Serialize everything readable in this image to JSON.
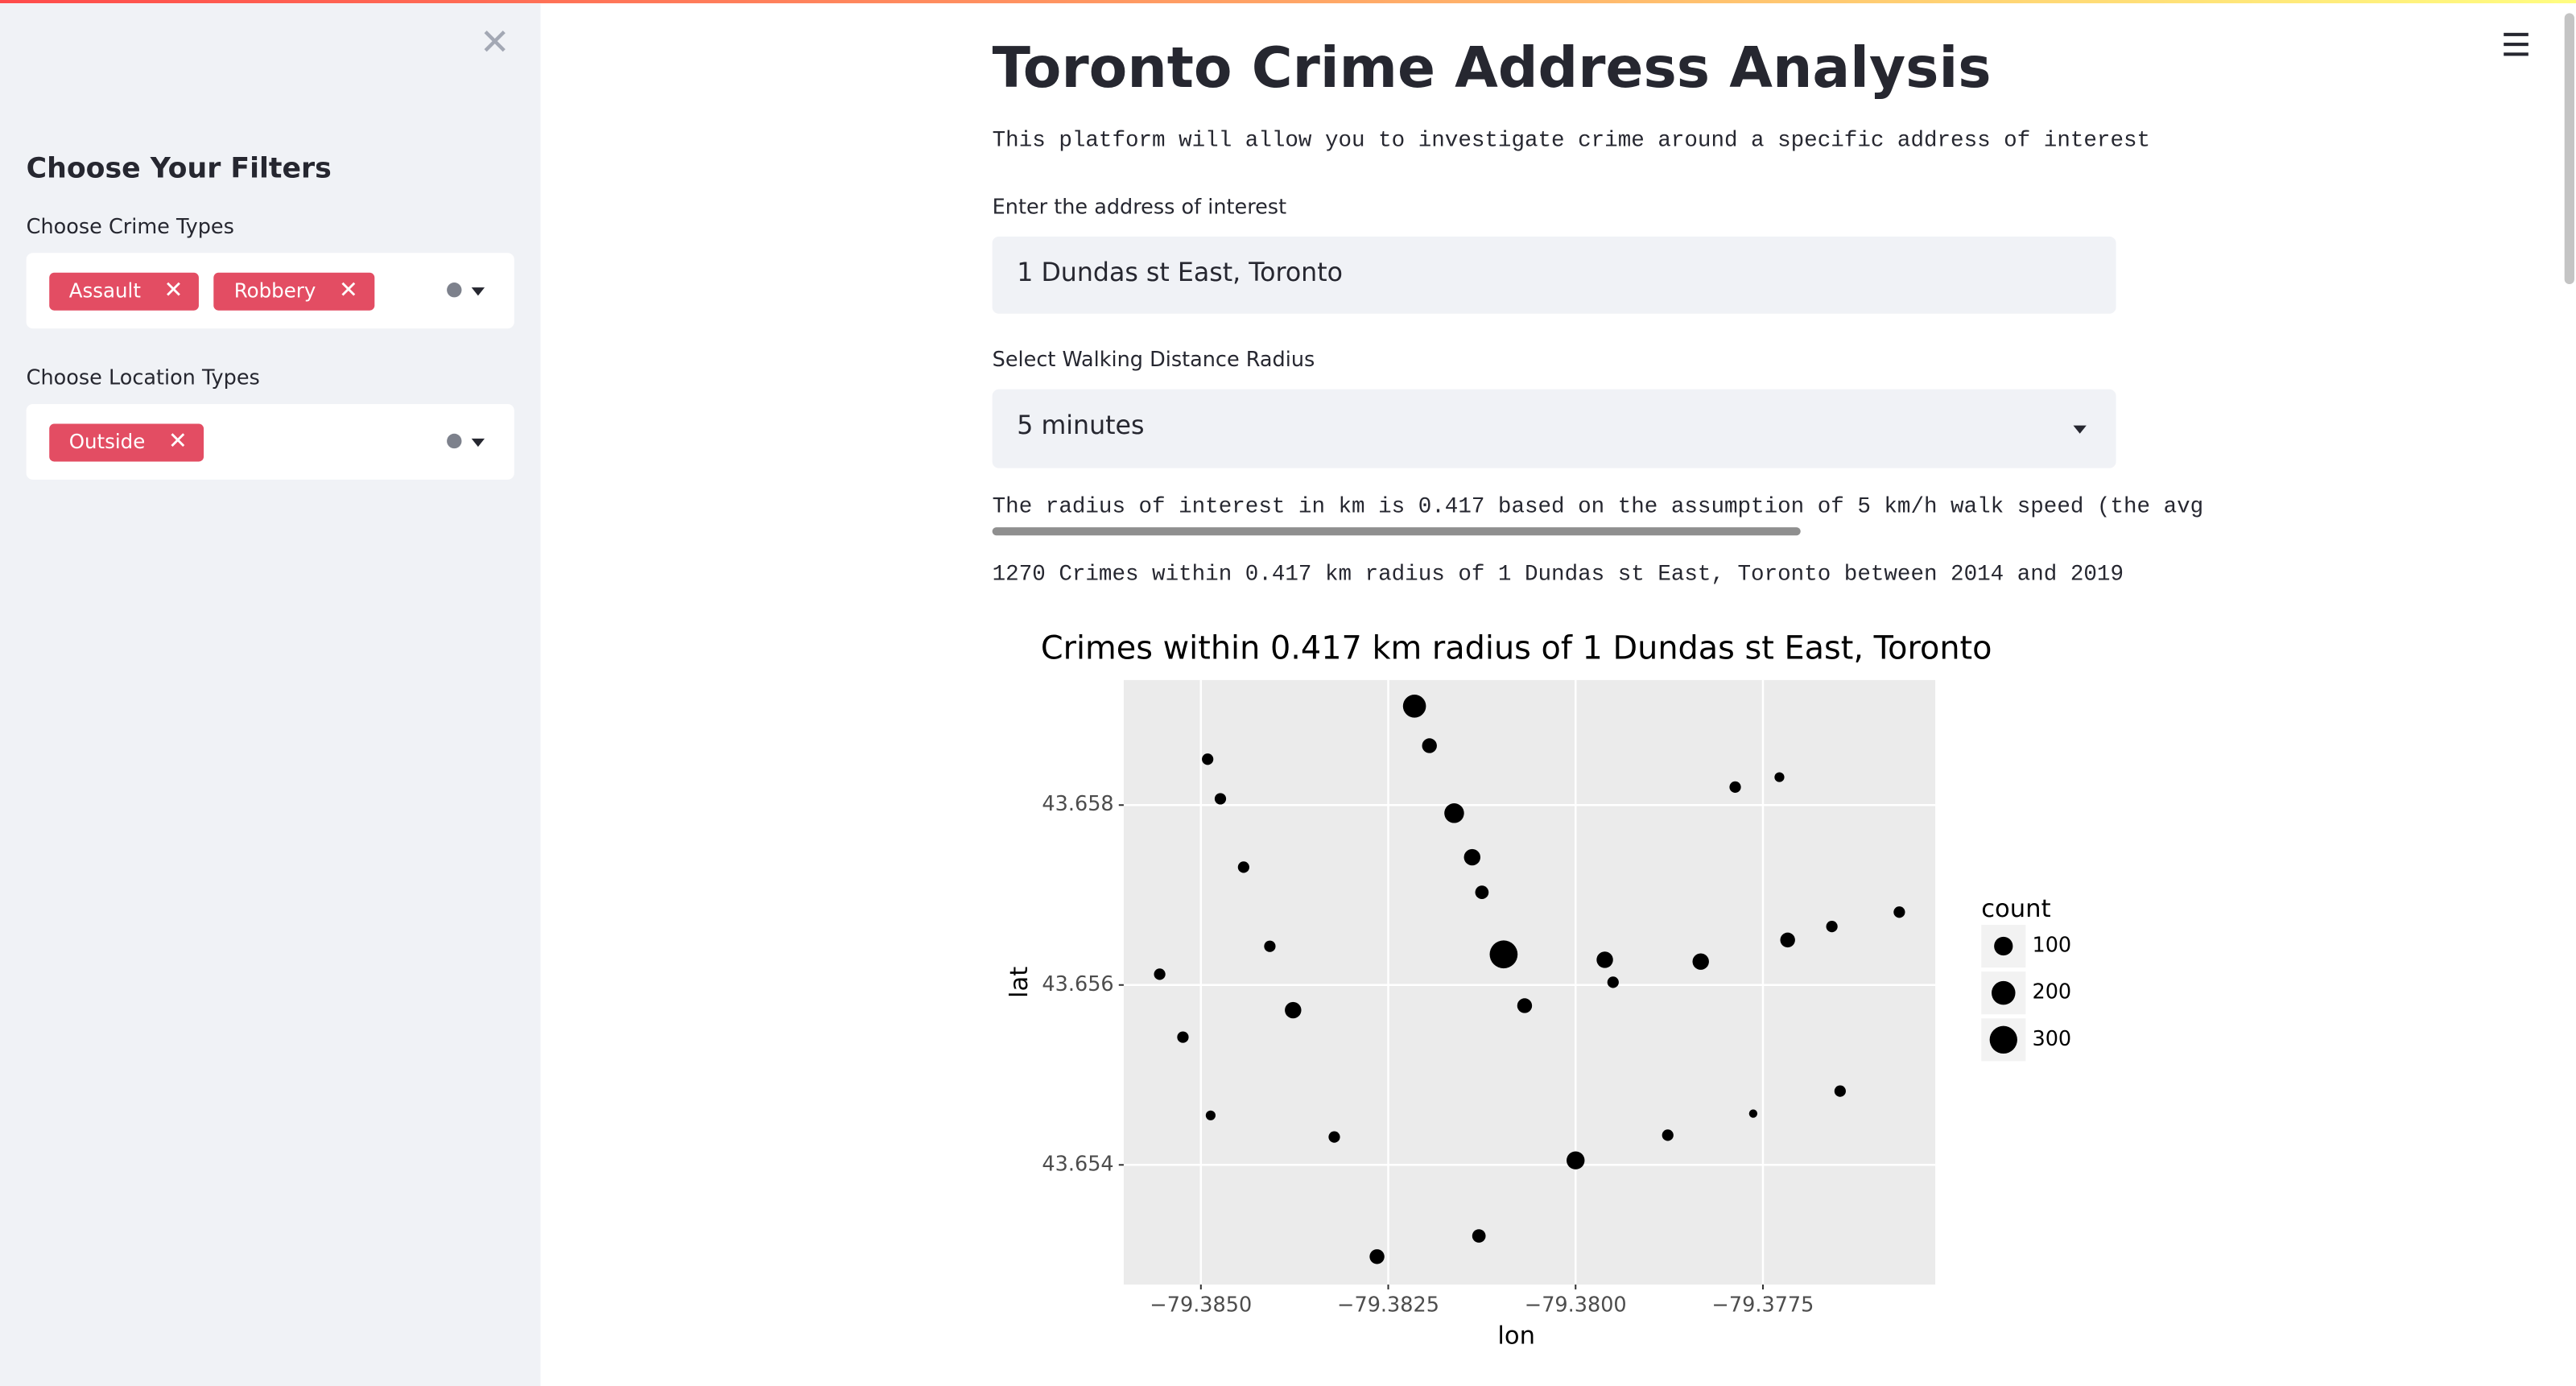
{
  "sidebar": {
    "heading": "Choose Your Filters",
    "crime_label": "Choose Crime Types",
    "crime_tags": [
      "Assault",
      "Robbery"
    ],
    "location_label": "Choose Location Types",
    "location_tags": [
      "Outside"
    ]
  },
  "main": {
    "title": "Toronto Crime Address Analysis",
    "description": "This platform will allow you to investigate crime around a specific address of interest",
    "address_label": "Enter the address of interest",
    "address_value": "1 Dundas st East, Toronto",
    "radius_label": "Select Walking Distance Radius",
    "radius_value": "5 minutes",
    "radius_note": "The radius of interest in km is 0.417 based on the assumption of 5 km/h walk speed (the avg",
    "summary": "1270 Crimes within 0.417 km radius of 1 Dundas st East, Toronto between 2014 and 2019"
  },
  "chart_data": {
    "type": "scatter",
    "title": "Crimes within 0.417 km radius of 1 Dundas st East, Toronto",
    "x_label": "lon",
    "y_label": "lat",
    "color": "#000000",
    "grid": true,
    "xlim": [
      -79.38603,
      -79.3752
    ],
    "ylim": [
      43.65267,
      43.65939
    ],
    "xticks": [
      {
        "value": -79.385,
        "label": "−79.3850"
      },
      {
        "value": -79.3825,
        "label": "−79.3825"
      },
      {
        "value": -79.38,
        "label": "−79.3800"
      },
      {
        "value": -79.3775,
        "label": "−79.3775"
      }
    ],
    "yticks": [
      43.654,
      43.656,
      43.658
    ],
    "x": [
      -79.38215,
      -79.38195,
      -79.38491,
      -79.38474,
      -79.38162,
      -79.37787,
      -79.37728,
      -79.38443,
      -79.38138,
      -79.38125,
      -79.38408,
      -79.38096,
      -79.37961,
      -79.3795,
      -79.37833,
      -79.37717,
      -79.37658,
      -79.37568,
      -79.38555,
      -79.38377,
      -79.38068,
      -79.38524,
      -79.38487,
      -79.38322,
      -79.37877,
      -79.37763,
      -79.37647,
      -79.38,
      -79.38129,
      -79.38265
    ],
    "y": [
      43.6591,
      43.65866,
      43.65851,
      43.65807,
      43.65791,
      43.6582,
      43.65831,
      43.65731,
      43.65742,
      43.65703,
      43.65643,
      43.65634,
      43.65628,
      43.65603,
      43.65626,
      43.6565,
      43.65665,
      43.65681,
      43.65612,
      43.65572,
      43.65577,
      43.65542,
      43.65455,
      43.65431,
      43.65433,
      43.65457,
      43.65482,
      43.65405,
      43.65321,
      43.65298
    ],
    "sizes": [
      183,
      46,
      16,
      16,
      117,
      16,
      7,
      16,
      66,
      32,
      16,
      309,
      66,
      16,
      66,
      46,
      16,
      16,
      16,
      66,
      46,
      16,
      7,
      16,
      16,
      2,
      16,
      89,
      32,
      46
    ],
    "size_legend": {
      "title": "count",
      "values": [
        100,
        200,
        300
      ]
    }
  }
}
